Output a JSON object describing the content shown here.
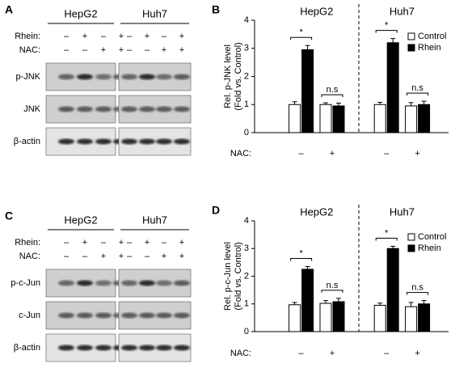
{
  "blots": [
    {
      "panel": "A",
      "cell_lines": [
        "HepG2",
        "Huh7"
      ],
      "conditions": [
        {
          "label": "Rhein:",
          "signs": [
            "–",
            "+",
            "–",
            "+",
            "–",
            "+",
            "–",
            "+"
          ]
        },
        {
          "label": "NAC:",
          "signs": [
            "–",
            "–",
            "+",
            "+",
            "–",
            "–",
            "+",
            "+"
          ]
        }
      ],
      "bands": [
        "p-JNK",
        "JNK",
        "β-actin"
      ]
    },
    {
      "panel": "C",
      "cell_lines": [
        "HepG2",
        "Huh7"
      ],
      "conditions": [
        {
          "label": "Rhein:",
          "signs": [
            "–",
            "+",
            "–",
            "+",
            "–",
            "+",
            "–",
            "+"
          ]
        },
        {
          "label": "NAC:",
          "signs": [
            "–",
            "–",
            "+",
            "+",
            "–",
            "–",
            "+",
            "+"
          ]
        }
      ],
      "bands": [
        "p-c-Jun",
        "c-Jun",
        "β-actin"
      ]
    }
  ],
  "chart_data": [
    {
      "type": "bar",
      "panel": "B",
      "groups": [
        "HepG2",
        "Huh7"
      ],
      "ylabel": [
        "Rel. p-JNK level",
        "(Fold vs. Control)"
      ],
      "xlabel": "NAC:",
      "categories": [
        "–",
        "+",
        "–",
        "+"
      ],
      "significance": [
        "*",
        "n.s",
        "*",
        "n.s"
      ],
      "series": [
        {
          "name": "Control",
          "color": "#ffffff",
          "values": [
            1.0,
            1.0,
            1.0,
            0.95
          ],
          "errors": [
            0.1,
            0.06,
            0.08,
            0.12
          ]
        },
        {
          "name": "Rhein",
          "color": "#000000",
          "values": [
            2.95,
            0.95,
            3.2,
            1.0
          ],
          "errors": [
            0.15,
            0.1,
            0.15,
            0.12
          ]
        }
      ],
      "ylim": [
        0,
        4
      ],
      "yticks": [
        0,
        1,
        2,
        3,
        4
      ]
    },
    {
      "type": "bar",
      "panel": "D",
      "groups": [
        "HepG2",
        "Huh7"
      ],
      "ylabel": [
        "Rel. p-c-Jun level",
        "(Fold vs. Control)"
      ],
      "xlabel": "NAC:",
      "categories": [
        "–",
        "+",
        "–",
        "+"
      ],
      "significance": [
        "*",
        "n.s",
        "*",
        "n.s"
      ],
      "series": [
        {
          "name": "Control",
          "color": "#ffffff",
          "values": [
            0.97,
            1.02,
            0.95,
            0.9
          ],
          "errors": [
            0.08,
            0.1,
            0.08,
            0.15
          ]
        },
        {
          "name": "Rhein",
          "color": "#000000",
          "values": [
            2.25,
            1.08,
            3.0,
            1.0
          ],
          "errors": [
            0.1,
            0.12,
            0.08,
            0.12
          ]
        }
      ],
      "ylim": [
        0,
        4
      ],
      "yticks": [
        0,
        1,
        2,
        3,
        4
      ]
    }
  ]
}
